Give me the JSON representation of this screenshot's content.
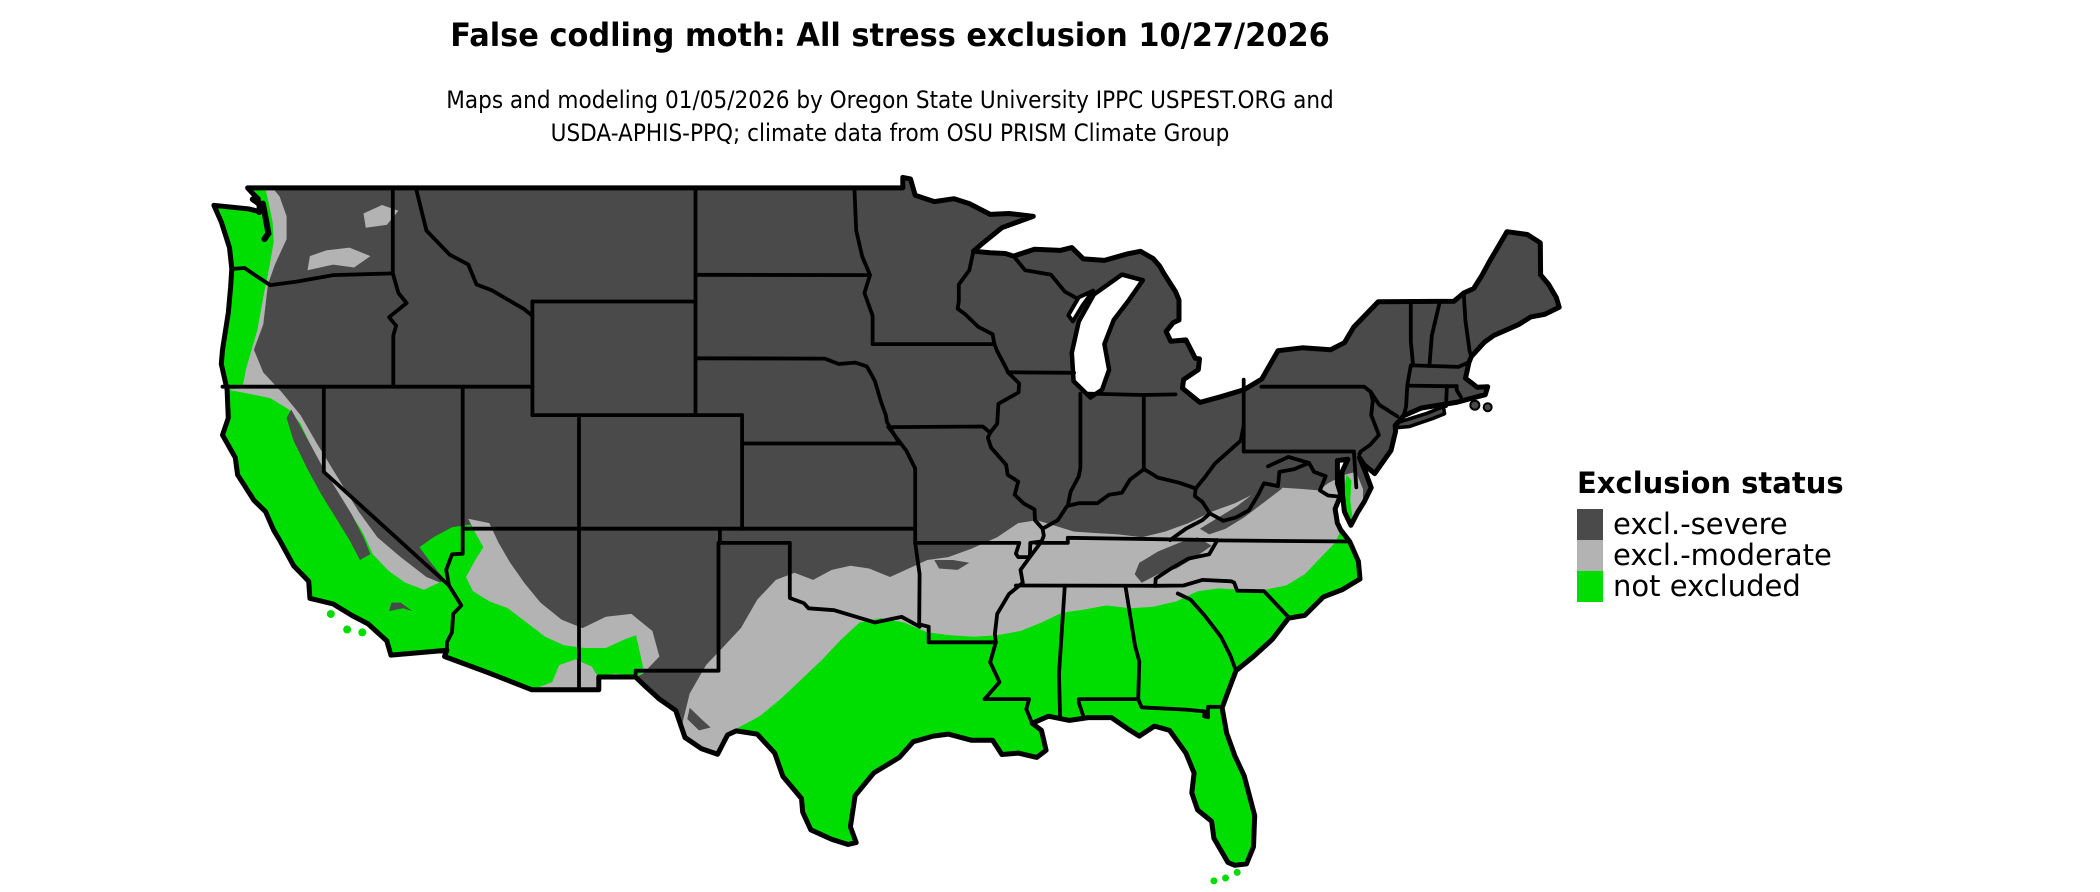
{
  "title": "False codling moth: All stress exclusion 10/27/2026",
  "subtitle": {
    "line1": "Maps and modeling 01/05/2026 by Oregon State University IPPC USPEST.ORG and",
    "line2": "USDA-APHIS-PPQ; climate data from OSU PRISM Climate Group"
  },
  "legend": {
    "title": "Exclusion status",
    "items": [
      {
        "label": "excl.-severe",
        "color": "#4a4a4a"
      },
      {
        "label": "excl.-moderate",
        "color": "#b3b3b3"
      },
      {
        "label": "not excluded",
        "color": "#00dd00"
      }
    ]
  },
  "map": {
    "background": "#ffffff",
    "boundary_color": "#000000",
    "water_color": "#ffffff"
  }
}
